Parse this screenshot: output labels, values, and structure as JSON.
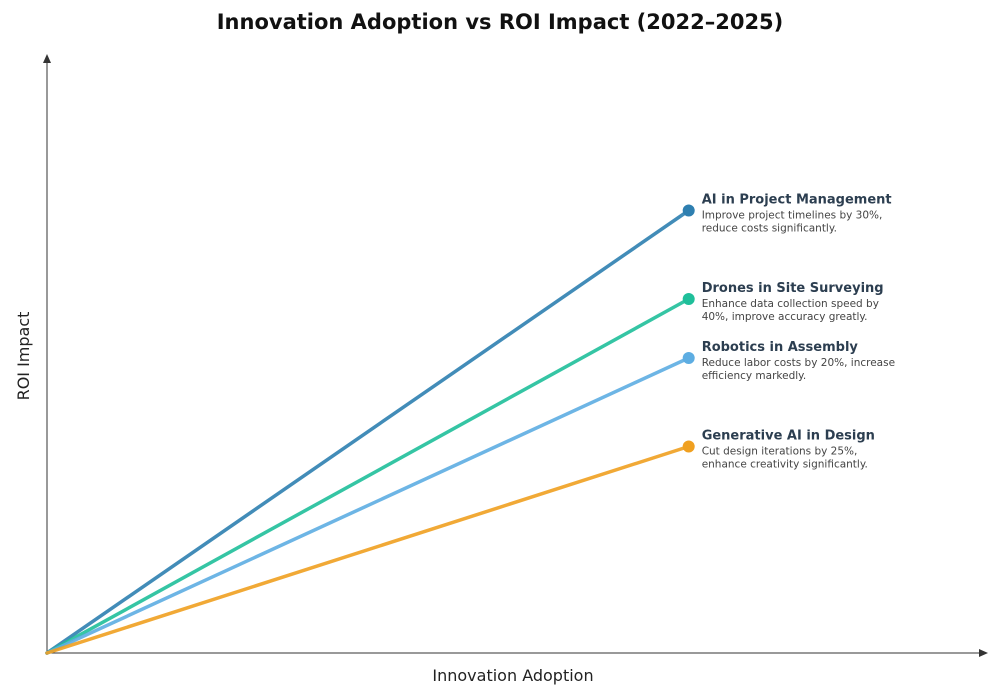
{
  "chart_data": {
    "type": "line",
    "title": "Innovation Adoption vs ROI Impact (2022–2025)",
    "xlabel": "Innovation Adoption",
    "ylabel": "ROI Impact",
    "grid": false,
    "axis_ticks": false,
    "xlim": [
      0,
      100
    ],
    "ylim": [
      0,
      100
    ],
    "series": [
      {
        "name": "AI in Project Management",
        "description_lines": [
          "Improve project timelines by 30%,",
          "reduce costs significantly."
        ],
        "color": "#2e7fb0",
        "points": [
          [
            0,
            0
          ],
          [
            69,
            75
          ]
        ]
      },
      {
        "name": "Drones in Site Surveying",
        "description_lines": [
          "Enhance data collection speed by",
          "40%, improve accuracy greatly."
        ],
        "color": "#1fbf9a",
        "points": [
          [
            0,
            0
          ],
          [
            69,
            60
          ]
        ]
      },
      {
        "name": "Robotics in Assembly",
        "description_lines": [
          "Reduce labor costs by 20%, increase",
          "efficiency markedly."
        ],
        "color": "#5dade2",
        "points": [
          [
            0,
            0
          ],
          [
            69,
            50
          ]
        ]
      },
      {
        "name": "Generative AI in Design",
        "description_lines": [
          "Cut design iterations by 25%,",
          "enhance creativity significantly."
        ],
        "color": "#f0a020",
        "points": [
          [
            0,
            0
          ],
          [
            69,
            35
          ]
        ]
      }
    ]
  }
}
